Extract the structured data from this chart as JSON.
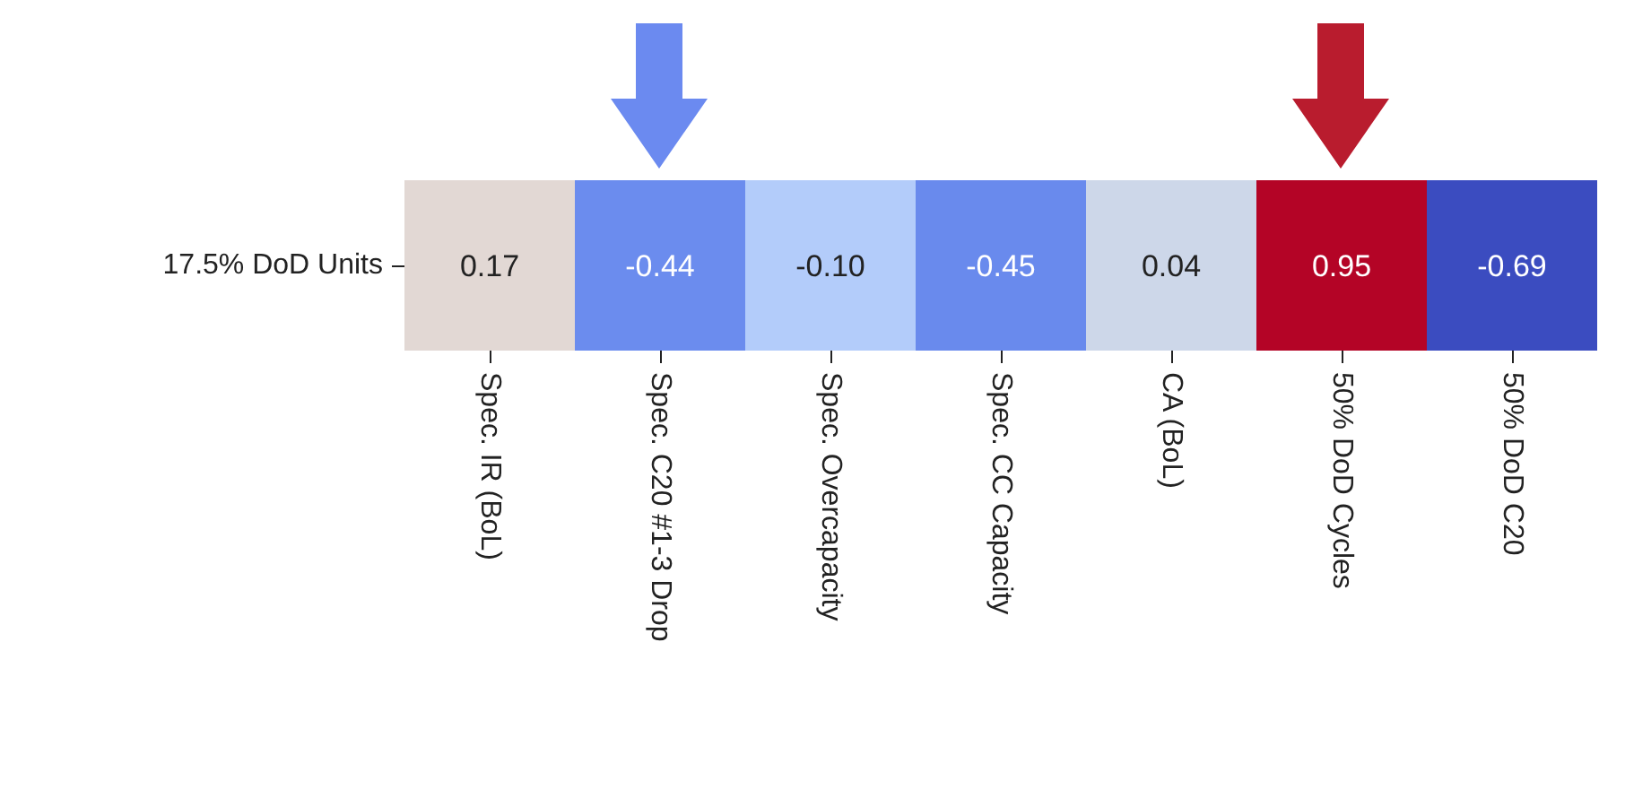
{
  "chart_data": {
    "type": "heatmap",
    "categories": [
      "Spec. IR (BoL)",
      "Spec. C20 #1-3 Drop",
      "Spec. Overcapacity",
      "Spec. CC Capacity",
      "CA (BoL)",
      "50% DoD Cycles",
      "50% DoD C20"
    ],
    "y_categories": [
      "17.5% DoD Units"
    ],
    "cells": [
      [
        0.17,
        -0.44,
        -0.1,
        -0.45,
        0.04,
        0.95,
        -0.69
      ]
    ],
    "data_labels": true,
    "cell_labels": [
      [
        "0.17",
        "-0.44",
        "-0.10",
        "-0.45",
        "0.04",
        "0.95",
        "-0.69"
      ]
    ]
  }
}
